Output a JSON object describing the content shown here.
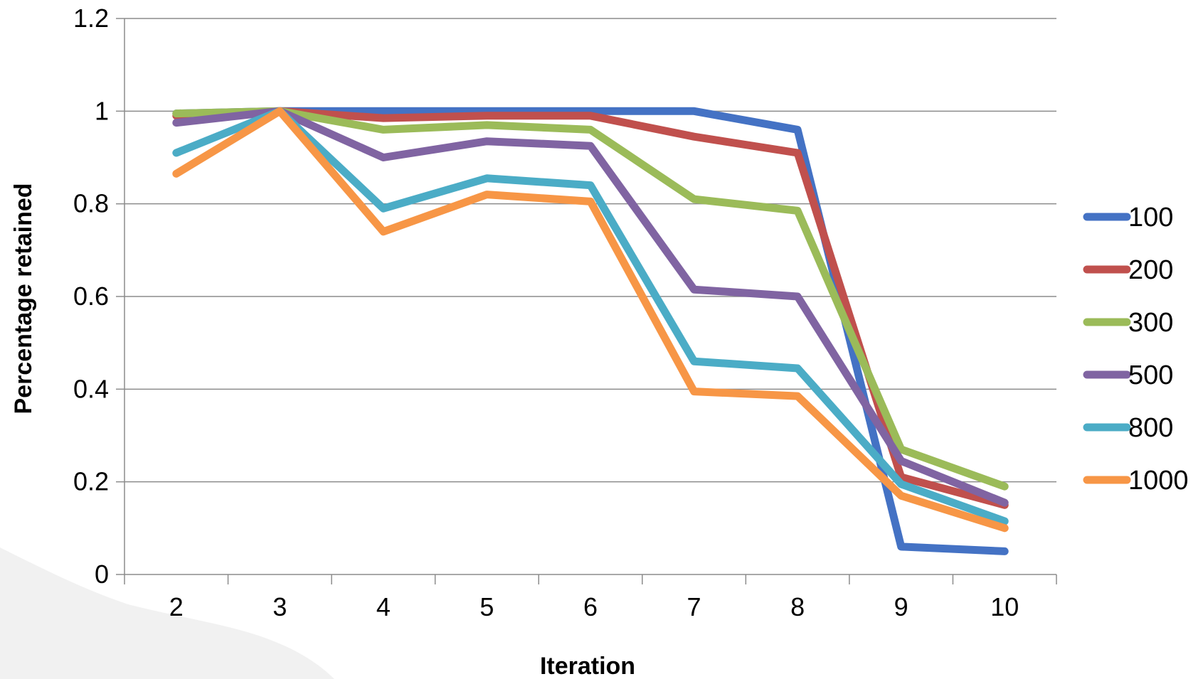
{
  "chart_data": {
    "type": "line",
    "title": "",
    "xlabel": "Iteration",
    "ylabel": "Percentage retained",
    "categories": [
      "2",
      "3",
      "4",
      "5",
      "6",
      "7",
      "8",
      "9",
      "10"
    ],
    "ylim": [
      0,
      1.2
    ],
    "yticks": [
      "0",
      "0.2",
      "0.4",
      "0.6",
      "0.8",
      "1",
      "1.2"
    ],
    "grid": "horizontal",
    "legend_position": "right",
    "series": [
      {
        "name": "100",
        "color": "#4472C4",
        "values": [
          0.995,
          1.0,
          1.0,
          1.0,
          1.0,
          1.0,
          0.96,
          0.06,
          0.05
        ]
      },
      {
        "name": "200",
        "color": "#C0504D",
        "values": [
          0.99,
          1.0,
          0.985,
          0.99,
          0.99,
          0.945,
          0.91,
          0.21,
          0.15
        ]
      },
      {
        "name": "300",
        "color": "#9BBB59",
        "values": [
          0.995,
          1.0,
          0.96,
          0.97,
          0.96,
          0.81,
          0.785,
          0.27,
          0.19
        ]
      },
      {
        "name": "500",
        "color": "#8064A2",
        "values": [
          0.975,
          1.0,
          0.9,
          0.935,
          0.925,
          0.615,
          0.6,
          0.245,
          0.155
        ]
      },
      {
        "name": "800",
        "color": "#4BACC6",
        "values": [
          0.91,
          1.0,
          0.79,
          0.855,
          0.84,
          0.46,
          0.445,
          0.195,
          0.115
        ]
      },
      {
        "name": "1000",
        "color": "#F79646",
        "values": [
          0.865,
          1.0,
          0.74,
          0.82,
          0.805,
          0.395,
          0.385,
          0.17,
          0.1
        ]
      }
    ]
  }
}
